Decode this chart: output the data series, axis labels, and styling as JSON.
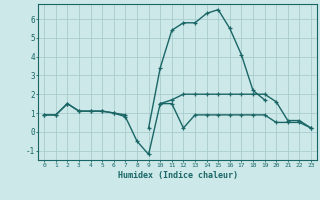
{
  "xlabel": "Humidex (Indice chaleur)",
  "background_color": "#cce8e8",
  "grid_color": "#aacccc",
  "line_color": "#1a6666",
  "x_data": [
    0,
    1,
    2,
    3,
    4,
    5,
    6,
    7,
    8,
    9,
    10,
    11,
    12,
    13,
    14,
    15,
    16,
    17,
    18,
    19,
    20,
    21,
    22,
    23
  ],
  "curve1": [
    0.9,
    0.9,
    1.5,
    1.1,
    1.1,
    1.1,
    1.0,
    0.9,
    null,
    null,
    1.5,
    1.7,
    2.0,
    2.0,
    2.0,
    2.0,
    2.0,
    2.0,
    2.0,
    2.0,
    1.6,
    0.6,
    0.6,
    0.2
  ],
  "curve2": [
    0.9,
    0.9,
    1.5,
    1.1,
    1.1,
    1.1,
    1.0,
    0.8,
    -0.5,
    -1.2,
    1.5,
    1.5,
    0.2,
    0.9,
    0.9,
    0.9,
    0.9,
    0.9,
    0.9,
    0.9,
    0.5,
    0.5,
    0.5,
    0.2
  ],
  "curve3": [
    null,
    null,
    null,
    null,
    null,
    null,
    null,
    null,
    null,
    0.2,
    3.4,
    5.4,
    5.8,
    5.8,
    6.3,
    6.5,
    5.5,
    4.1,
    2.2,
    1.7,
    null,
    null,
    null,
    null
  ],
  "ylim": [
    -1.5,
    6.8
  ],
  "xlim": [
    -0.5,
    23.5
  ],
  "yticks": [
    -1,
    0,
    1,
    2,
    3,
    4,
    5,
    6
  ],
  "xticks": [
    0,
    1,
    2,
    3,
    4,
    5,
    6,
    7,
    8,
    9,
    10,
    11,
    12,
    13,
    14,
    15,
    16,
    17,
    18,
    19,
    20,
    21,
    22,
    23
  ]
}
